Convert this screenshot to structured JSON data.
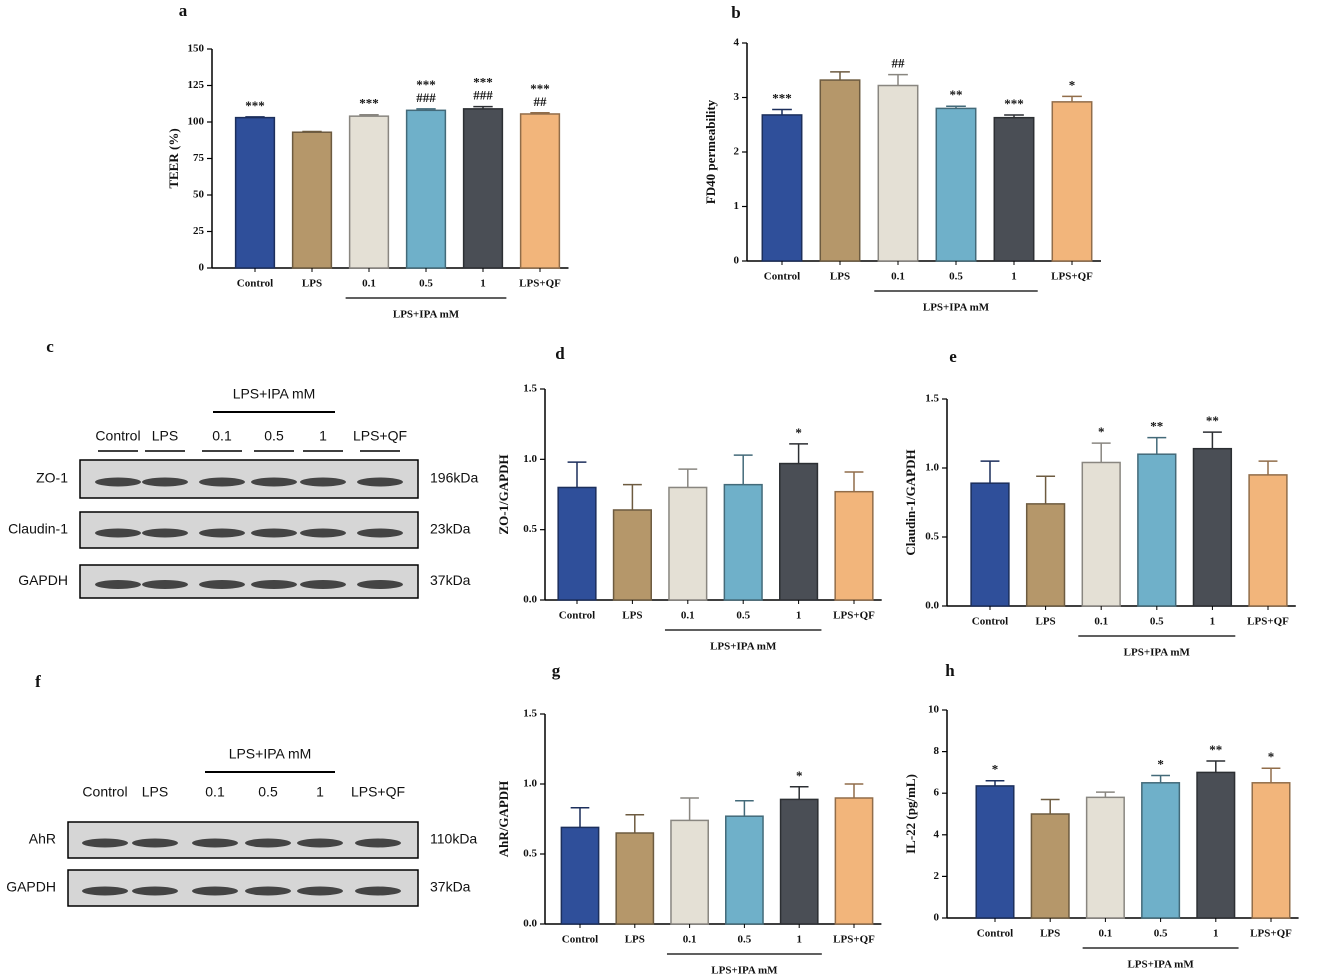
{
  "chart_data": [
    {
      "type": "bar",
      "title": "a",
      "ylabel": "TEER (%)",
      "categories": [
        "Control",
        "LPS",
        "0.1",
        "0.5",
        "1",
        "LPS+QF"
      ],
      "values": [
        103,
        93,
        104,
        108,
        109,
        105.5
      ],
      "errors": [
        0.5,
        0.5,
        1,
        1,
        1.5,
        0.8
      ],
      "annotations": [
        [
          "***"
        ],
        [],
        [
          "***"
        ],
        [
          "***",
          "###"
        ],
        [
          "***",
          "###"
        ],
        [
          "***",
          "##"
        ]
      ],
      "group_label": "LPS+IPA mM",
      "colors": [
        "#2f4f9a",
        "#b5976a",
        "#e4e0d5",
        "#6fb0c9",
        "#4a4e55",
        "#f2b57b"
      ],
      "ylim": [
        0,
        150
      ],
      "yticks": [
        0,
        25,
        50,
        75,
        100,
        125,
        150
      ]
    },
    {
      "type": "bar",
      "title": "b",
      "ylabel": "FD40 permeability",
      "categories": [
        "Control",
        "LPS",
        "0.1",
        "0.5",
        "1",
        "LPS+QF"
      ],
      "values": [
        2.68,
        3.32,
        3.22,
        2.8,
        2.63,
        2.92
      ],
      "errors": [
        0.1,
        0.15,
        0.2,
        0.04,
        0.05,
        0.1
      ],
      "annotations": [
        [
          "***"
        ],
        [],
        [
          "##"
        ],
        [
          "**"
        ],
        [
          "***"
        ],
        [
          "*"
        ]
      ],
      "group_label": "LPS+IPA mM",
      "colors": [
        "#2f4f9a",
        "#b5976a",
        "#e4e0d5",
        "#6fb0c9",
        "#4a4e55",
        "#f2b57b"
      ],
      "ylim": [
        0,
        4
      ],
      "yticks": [
        0,
        1,
        2,
        3,
        4
      ]
    },
    {
      "type": "bar",
      "title": "d",
      "ylabel": "ZO-1/GAPDH",
      "categories": [
        "Control",
        "LPS",
        "0.1",
        "0.5",
        "1",
        "LPS+QF"
      ],
      "values": [
        0.8,
        0.64,
        0.8,
        0.82,
        0.97,
        0.77
      ],
      "errors": [
        0.18,
        0.18,
        0.13,
        0.21,
        0.14,
        0.14
      ],
      "annotations": [
        [],
        [],
        [],
        [],
        [
          "*"
        ],
        []
      ],
      "group_label": "LPS+IPA mM",
      "colors": [
        "#2f4f9a",
        "#b5976a",
        "#e4e0d5",
        "#6fb0c9",
        "#4a4e55",
        "#f2b57b"
      ],
      "ylim": [
        0,
        1.5
      ],
      "yticks": [
        {
          "value": 0,
          "label": "0.0"
        },
        0.5,
        {
          "value": 1,
          "label": "1.0"
        },
        1.5
      ]
    },
    {
      "type": "bar",
      "title": "e",
      "ylabel": "Claudin-1/GAPDH",
      "categories": [
        "Control",
        "LPS",
        "0.1",
        "0.5",
        "1",
        "LPS+QF"
      ],
      "values": [
        0.89,
        0.74,
        1.04,
        1.1,
        1.14,
        0.95
      ],
      "errors": [
        0.16,
        0.2,
        0.14,
        0.12,
        0.12,
        0.1
      ],
      "annotations": [
        [],
        [],
        [
          "*"
        ],
        [
          "**"
        ],
        [
          "**"
        ],
        []
      ],
      "group_label": "LPS+IPA mM",
      "colors": [
        "#2f4f9a",
        "#b5976a",
        "#e4e0d5",
        "#6fb0c9",
        "#4a4e55",
        "#f2b57b"
      ],
      "ylim": [
        0,
        1.5
      ],
      "yticks": [
        {
          "value": 0,
          "label": "0.0"
        },
        0.5,
        {
          "value": 1,
          "label": "1.0"
        },
        1.5
      ]
    },
    {
      "type": "bar",
      "title": "g",
      "ylabel": "AhR/GAPDH",
      "categories": [
        "Control",
        "LPS",
        "0.1",
        "0.5",
        "1",
        "LPS+QF"
      ],
      "values": [
        0.69,
        0.65,
        0.74,
        0.77,
        0.89,
        0.9
      ],
      "errors": [
        0.14,
        0.13,
        0.16,
        0.11,
        0.09,
        0.1
      ],
      "annotations": [
        [],
        [],
        [],
        [],
        [
          "*"
        ],
        []
      ],
      "group_label": "LPS+IPA mM",
      "colors": [
        "#2f4f9a",
        "#b5976a",
        "#e4e0d5",
        "#6fb0c9",
        "#4a4e55",
        "#f2b57b"
      ],
      "ylim": [
        0,
        1.5
      ],
      "yticks": [
        {
          "value": 0,
          "label": "0.0"
        },
        0.5,
        {
          "value": 1,
          "label": "1.0"
        },
        1.5
      ]
    },
    {
      "type": "bar",
      "title": "h",
      "ylabel": "IL-22 (pg/mL)",
      "categories": [
        "Control",
        "LPS",
        "0.1",
        "0.5",
        "1",
        "LPS+QF"
      ],
      "values": [
        6.35,
        5.0,
        5.8,
        6.5,
        7.0,
        6.5
      ],
      "errors": [
        0.25,
        0.7,
        0.25,
        0.35,
        0.55,
        0.7
      ],
      "annotations": [
        [
          "*"
        ],
        [],
        [],
        [
          "*"
        ],
        [
          "**"
        ],
        [
          "*"
        ]
      ],
      "group_label": "LPS+IPA mM",
      "colors": [
        "#2f4f9a",
        "#b5976a",
        "#e4e0d5",
        "#6fb0c9",
        "#4a4e55",
        "#f2b57b"
      ],
      "ylim": [
        0,
        10
      ],
      "yticks": [
        0,
        2,
        4,
        6,
        8,
        10
      ]
    }
  ],
  "blots": [
    {
      "label": "c",
      "group_label": "LPS+IPA mM",
      "lanes": [
        "Control",
        "LPS",
        "0.1",
        "0.5",
        "1",
        "LPS+QF"
      ],
      "rows": [
        {
          "name": "ZO-1",
          "size": "196kDa"
        },
        {
          "name": "Claudin-1",
          "size": "23kDa"
        },
        {
          "name": "GAPDH",
          "size": "37kDa"
        }
      ]
    },
    {
      "label": "f",
      "group_label": "LPS+IPA mM",
      "lanes": [
        "Control",
        "LPS",
        "0.1",
        "0.5",
        "1",
        "LPS+QF"
      ],
      "rows": [
        {
          "name": "AhR",
          "size": "110kDa"
        },
        {
          "name": "GAPDH",
          "size": "37kDa"
        }
      ]
    }
  ]
}
